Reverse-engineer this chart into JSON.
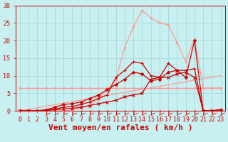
{
  "xlabel": "Vent moyen/en rafales ( km/h )",
  "background_color": "#c8f0f0",
  "grid_color": "#a8d8d8",
  "xlim": [
    -0.5,
    23.5
  ],
  "ylim": [
    0,
    30
  ],
  "xticks": [
    0,
    1,
    2,
    3,
    4,
    5,
    6,
    7,
    8,
    9,
    10,
    11,
    12,
    13,
    14,
    15,
    16,
    17,
    18,
    19,
    20,
    21,
    22,
    23
  ],
  "yticks": [
    0,
    5,
    10,
    15,
    20,
    25,
    30
  ],
  "line_pink_flat_x": [
    0,
    1,
    2,
    3,
    4,
    5,
    6,
    7,
    8,
    9,
    10,
    11,
    12,
    13,
    14,
    15,
    16,
    17,
    18,
    19,
    20,
    21,
    22,
    23
  ],
  "line_pink_flat_y": [
    6.5,
    6.5,
    6.5,
    6.5,
    6.5,
    6.5,
    6.5,
    6.5,
    6.5,
    6.5,
    6.5,
    6.5,
    6.5,
    6.5,
    6.5,
    6.5,
    6.5,
    6.5,
    6.5,
    6.5,
    6.5,
    6.5,
    6.5,
    6.5
  ],
  "line_pink_diag_x": [
    0,
    1,
    2,
    3,
    4,
    5,
    6,
    7,
    8,
    9,
    10,
    11,
    12,
    13,
    14,
    15,
    16,
    17,
    18,
    19,
    20,
    21,
    22,
    23
  ],
  "line_pink_diag_y": [
    0.0,
    0.43,
    0.87,
    1.3,
    1.74,
    2.17,
    2.61,
    3.04,
    3.48,
    3.91,
    4.35,
    4.78,
    5.22,
    5.65,
    6.09,
    6.52,
    6.96,
    7.39,
    7.83,
    8.26,
    8.7,
    9.13,
    9.57,
    10.0
  ],
  "line_pink_spiky_x": [
    0,
    1,
    2,
    3,
    4,
    5,
    6,
    7,
    8,
    9,
    10,
    11,
    12,
    13,
    14,
    15,
    16,
    17,
    18,
    19,
    20,
    21,
    22,
    23
  ],
  "line_pink_spiky_y": [
    0.0,
    0.0,
    0.0,
    0.0,
    0.0,
    0.0,
    0.3,
    0.8,
    1.5,
    3.5,
    6.0,
    9.0,
    18.0,
    24.0,
    28.5,
    26.5,
    25.0,
    24.5,
    19.5,
    14.0,
    20.5,
    6.5,
    6.5,
    6.5
  ],
  "line_red1_x": [
    0,
    1,
    2,
    3,
    4,
    5,
    6,
    7,
    8,
    9,
    10,
    11,
    12,
    13,
    14,
    15,
    16,
    17,
    18,
    19,
    20,
    21,
    22,
    23
  ],
  "line_red1_y": [
    0.0,
    0.0,
    0.0,
    0.1,
    0.3,
    0.5,
    0.7,
    1.0,
    1.5,
    2.0,
    2.5,
    3.0,
    4.0,
    4.5,
    5.0,
    9.0,
    9.5,
    9.5,
    10.5,
    11.0,
    9.5,
    0.0,
    0.0,
    0.3
  ],
  "line_red2_x": [
    0,
    1,
    2,
    3,
    4,
    5,
    6,
    7,
    8,
    9,
    10,
    11,
    12,
    13,
    14,
    15,
    16,
    17,
    18,
    19,
    20,
    21,
    22,
    23
  ],
  "line_red2_y": [
    0.0,
    0.0,
    0.0,
    0.2,
    0.5,
    1.0,
    1.2,
    1.8,
    2.5,
    3.5,
    4.5,
    9.5,
    11.5,
    14.0,
    13.5,
    10.0,
    9.5,
    13.5,
    11.5,
    11.5,
    12.0,
    0.0,
    0.0,
    0.3
  ],
  "line_red3_x": [
    0,
    1,
    2,
    3,
    4,
    5,
    6,
    7,
    8,
    9,
    10,
    11,
    12,
    13,
    14,
    15,
    16,
    17,
    18,
    19,
    20,
    21,
    22,
    23
  ],
  "line_red3_y": [
    0.0,
    0.0,
    0.0,
    0.3,
    1.0,
    1.8,
    2.0,
    2.5,
    3.5,
    4.5,
    6.0,
    7.5,
    9.0,
    11.0,
    10.5,
    8.5,
    9.0,
    11.0,
    11.5,
    9.5,
    20.0,
    0.0,
    0.0,
    0.3
  ],
  "line_pink_color": "#ff9999",
  "line_red_color": "#cc0000",
  "xlabel_fontsize": 8,
  "tick_fontsize": 6
}
